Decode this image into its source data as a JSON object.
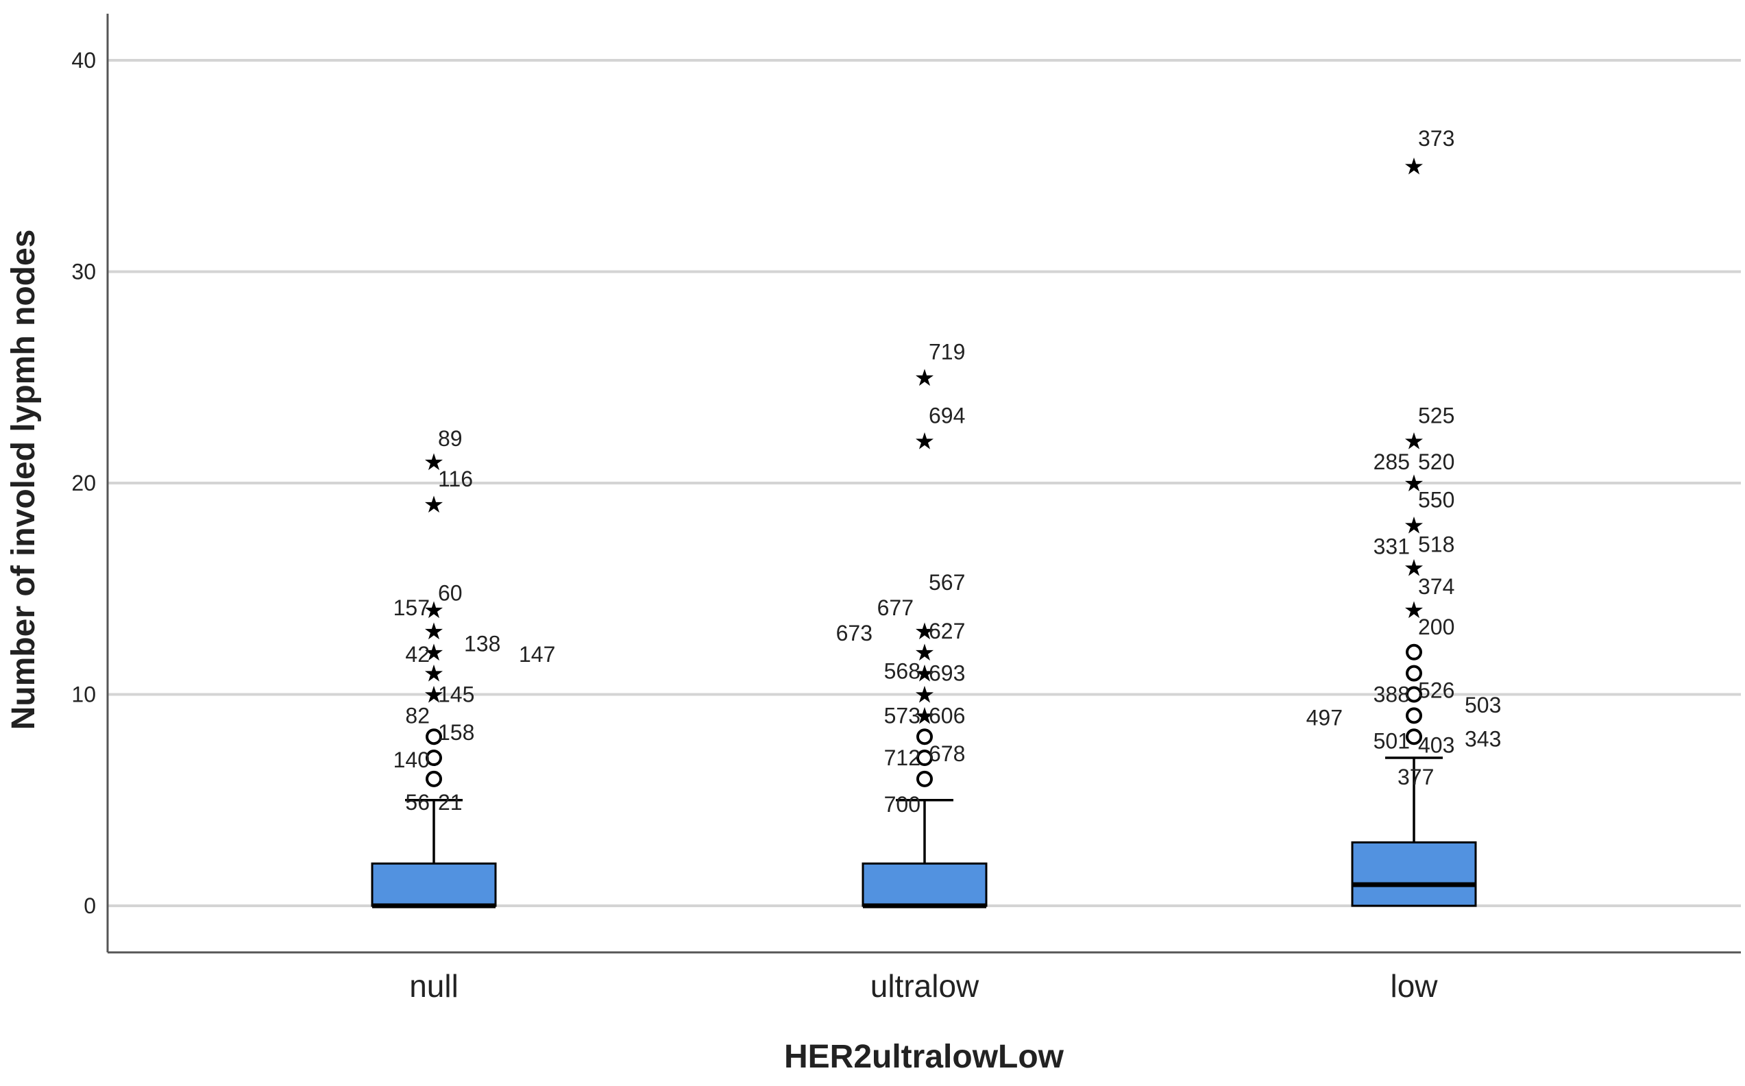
{
  "chart_data": {
    "type": "boxplot",
    "xlabel": "HER2ultralowLow",
    "ylabel": "Number of involed lypmh nodes",
    "ylim": [
      -2.2,
      42.3
    ],
    "yticks": [
      0,
      10,
      20,
      30,
      40
    ],
    "grid": true,
    "box_color": "#5292e0",
    "categories": [
      "null",
      "ultralow",
      "low"
    ],
    "groups": [
      {
        "category": "null",
        "q1": 0,
        "median": 0,
        "q3": 2,
        "whisker_low": 0,
        "whisker_high": 5,
        "outliers": [
          6,
          7,
          8
        ],
        "extremes": [
          10,
          11,
          12,
          13,
          14,
          19,
          21
        ]
      },
      {
        "category": "ultralow",
        "q1": 0,
        "median": 0,
        "q3": 2,
        "whisker_low": 0,
        "whisker_high": 5,
        "outliers": [
          6,
          7,
          8
        ],
        "extremes": [
          9,
          10,
          11,
          12,
          13,
          22,
          25
        ]
      },
      {
        "category": "low",
        "q1": 0,
        "median": 1,
        "q3": 3,
        "whisker_low": 0,
        "whisker_high": 7,
        "outliers": [
          8,
          9,
          10,
          11,
          12
        ],
        "extremes": [
          14,
          16,
          18,
          20,
          22,
          35
        ]
      }
    ],
    "case_labels": [
      {
        "text": "89",
        "category": "null",
        "side": "right",
        "y": 22.1
      },
      {
        "text": "116",
        "category": "null",
        "side": "right",
        "y": 20.2
      },
      {
        "text": "60",
        "category": "null",
        "side": "right",
        "y": 14.8
      },
      {
        "text": "157",
        "category": "null",
        "side": "left",
        "y": 14.1
      },
      {
        "text": "138",
        "category": "null",
        "side": "right",
        "y": 12.4,
        "offset": 38
      },
      {
        "text": "147",
        "category": "null",
        "side": "right",
        "y": 11.9,
        "offset": 118
      },
      {
        "text": "42",
        "category": "null",
        "side": "left",
        "y": 11.9
      },
      {
        "text": "145",
        "category": "null",
        "side": "right",
        "y": 10.0
      },
      {
        "text": "82",
        "category": "null",
        "side": "left",
        "y": 9.0
      },
      {
        "text": "158",
        "category": "null",
        "side": "right",
        "y": 8.2
      },
      {
        "text": "140",
        "category": "null",
        "side": "left",
        "y": 6.9
      },
      {
        "text": "56",
        "category": "null",
        "side": "left",
        "y": 4.9
      },
      {
        "text": "21",
        "category": "null",
        "side": "right",
        "y": 4.9
      },
      {
        "text": "719",
        "category": "ultralow",
        "side": "right",
        "y": 26.2
      },
      {
        "text": "694",
        "category": "ultralow",
        "side": "right",
        "y": 23.2
      },
      {
        "text": "567",
        "category": "ultralow",
        "side": "right",
        "y": 15.3
      },
      {
        "text": "677",
        "category": "ultralow",
        "side": "left",
        "y": 14.1,
        "offset": 10
      },
      {
        "text": "673",
        "category": "ultralow",
        "side": "left",
        "y": 12.9,
        "offset": 70
      },
      {
        "text": "627",
        "category": "ultralow",
        "side": "right",
        "y": 13.0
      },
      {
        "text": "568",
        "category": "ultralow",
        "side": "left",
        "y": 11.1
      },
      {
        "text": "693",
        "category": "ultralow",
        "side": "right",
        "y": 11.0
      },
      {
        "text": "573",
        "category": "ultralow",
        "side": "left",
        "y": 9.0
      },
      {
        "text": "606",
        "category": "ultralow",
        "side": "right",
        "y": 9.0
      },
      {
        "text": "712",
        "category": "ultralow",
        "side": "left",
        "y": 7.0
      },
      {
        "text": "678",
        "category": "ultralow",
        "side": "right",
        "y": 7.2
      },
      {
        "text": "700",
        "category": "ultralow",
        "side": "left",
        "y": 4.8
      },
      {
        "text": "373",
        "category": "low",
        "side": "right",
        "y": 36.3
      },
      {
        "text": "525",
        "category": "low",
        "side": "right",
        "y": 23.2
      },
      {
        "text": "285",
        "category": "low",
        "side": "left",
        "y": 21.0
      },
      {
        "text": "520",
        "category": "low",
        "side": "right",
        "y": 21.0
      },
      {
        "text": "550",
        "category": "low",
        "side": "right",
        "y": 19.2
      },
      {
        "text": "331",
        "category": "low",
        "side": "left",
        "y": 17.0
      },
      {
        "text": "518",
        "category": "low",
        "side": "right",
        "y": 17.1
      },
      {
        "text": "374",
        "category": "low",
        "side": "right",
        "y": 15.1
      },
      {
        "text": "200",
        "category": "low",
        "side": "right",
        "y": 13.2
      },
      {
        "text": "388",
        "category": "low",
        "side": "left",
        "y": 10.0
      },
      {
        "text": "526",
        "category": "low",
        "side": "right",
        "y": 10.2
      },
      {
        "text": "503",
        "category": "low",
        "side": "right",
        "y": 9.5,
        "offset": 68
      },
      {
        "text": "497",
        "category": "low",
        "side": "left",
        "y": 8.9,
        "offset": 98
      },
      {
        "text": "501",
        "category": "low",
        "side": "left",
        "y": 7.8
      },
      {
        "text": "403",
        "category": "low",
        "side": "right",
        "y": 7.6
      },
      {
        "text": "343",
        "category": "low",
        "side": "right",
        "y": 7.9,
        "offset": 68
      },
      {
        "text": "377",
        "category": "low",
        "side": "right",
        "y": 6.1,
        "offset": -30
      }
    ]
  }
}
